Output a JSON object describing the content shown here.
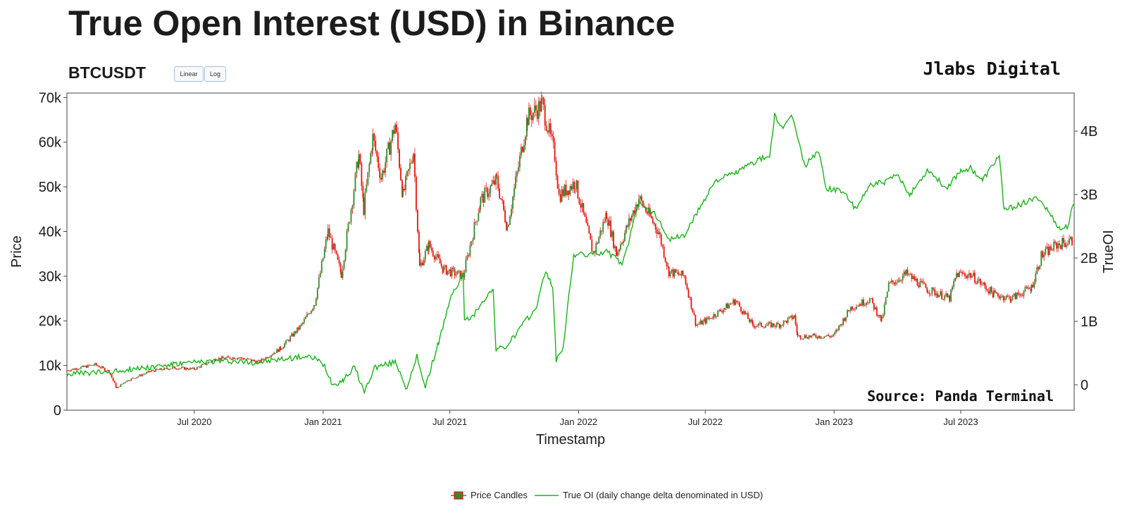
{
  "header": {
    "title": "True Open Interest (USD) in Binance",
    "symbol": "BTCUSDT",
    "brand": "Jlabs Digital",
    "source": "Source: Panda Terminal"
  },
  "controls": {
    "linear_label": "Linear",
    "log_label": "Log",
    "active_scale": "linear"
  },
  "legend": {
    "items": [
      {
        "label": "Price Candles",
        "icon": "candle-swatch-icon"
      },
      {
        "label": "True OI (daily change delta denominated in USD)",
        "icon": "line-swatch-icon"
      }
    ]
  },
  "colors": {
    "candle_up": "#2e8b2e",
    "candle_down": "#e8120c",
    "oi_line": "#18b318",
    "axis": "#444444"
  },
  "chart_data": {
    "type": "line",
    "xlabel": "Timestamp",
    "ylabel_left": "Price",
    "ylabel_right": "TrueOI",
    "x_ticks": [
      "Jul 2020",
      "Jan 2021",
      "Jul 2021",
      "Jan 2022",
      "Jul 2022",
      "Jan 2023",
      "Jul 2023"
    ],
    "x_tick_dates": [
      "2020-07-01",
      "2021-01-01",
      "2021-07-01",
      "2022-01-01",
      "2022-07-01",
      "2023-01-01",
      "2023-07-01"
    ],
    "xlim": [
      "2020-01-01",
      "2023-12-10"
    ],
    "y_left_ticks": [
      "0",
      "10k",
      "20k",
      "30k",
      "40k",
      "50k",
      "60k",
      "70k"
    ],
    "y_left_range": [
      0,
      71000
    ],
    "y_right_ticks": [
      "0",
      "1B",
      "2B",
      "3B",
      "4B"
    ],
    "y_right_range": [
      -0.4,
      4.6
    ],
    "y_right_unit": "B",
    "grid": false,
    "legend_position": "bottom-center",
    "series": [
      {
        "name": "Price Candles",
        "kind": "candlestick",
        "points": [
          [
            "2020-01-01",
            8900
          ],
          [
            "2020-02-10",
            10200
          ],
          [
            "2020-03-01",
            8700
          ],
          [
            "2020-03-12",
            4900
          ],
          [
            "2020-03-25",
            6500
          ],
          [
            "2020-05-01",
            8800
          ],
          [
            "2020-06-01",
            9500
          ],
          [
            "2020-07-01",
            9200
          ],
          [
            "2020-08-01",
            11500
          ],
          [
            "2020-09-01",
            11800
          ],
          [
            "2020-10-01",
            10800
          ],
          [
            "2020-11-01",
            13800
          ],
          [
            "2020-12-01",
            19000
          ],
          [
            "2020-12-20",
            24000
          ],
          [
            "2021-01-08",
            40000
          ],
          [
            "2021-01-27",
            30500
          ],
          [
            "2021-02-21",
            57000
          ],
          [
            "2021-02-28",
            45000
          ],
          [
            "2021-03-13",
            61000
          ],
          [
            "2021-03-25",
            52000
          ],
          [
            "2021-04-14",
            64000
          ],
          [
            "2021-04-25",
            48000
          ],
          [
            "2021-05-10",
            58000
          ],
          [
            "2021-05-19",
            32000
          ],
          [
            "2021-06-01",
            37000
          ],
          [
            "2021-06-22",
            31500
          ],
          [
            "2021-07-20",
            30000
          ],
          [
            "2021-08-14",
            47000
          ],
          [
            "2021-09-06",
            51500
          ],
          [
            "2021-09-21",
            41000
          ],
          [
            "2021-10-20",
            65500
          ],
          [
            "2021-11-10",
            68500
          ],
          [
            "2021-11-28",
            57000
          ],
          [
            "2021-12-04",
            48000
          ],
          [
            "2021-12-27",
            51000
          ],
          [
            "2022-01-22",
            35000
          ],
          [
            "2022-02-10",
            44000
          ],
          [
            "2022-02-24",
            35000
          ],
          [
            "2022-03-28",
            47500
          ],
          [
            "2022-04-25",
            40000
          ],
          [
            "2022-05-10",
            31000
          ],
          [
            "2022-06-01",
            30000
          ],
          [
            "2022-06-18",
            19000
          ],
          [
            "2022-07-01",
            20000
          ],
          [
            "2022-08-13",
            24500
          ],
          [
            "2022-09-07",
            19000
          ],
          [
            "2022-10-15",
            19100
          ],
          [
            "2022-11-05",
            21000
          ],
          [
            "2022-11-10",
            16500
          ],
          [
            "2022-12-31",
            16600
          ],
          [
            "2023-01-25",
            23000
          ],
          [
            "2023-02-21",
            24800
          ],
          [
            "2023-03-10",
            20000
          ],
          [
            "2023-03-20",
            28000
          ],
          [
            "2023-04-14",
            30500
          ],
          [
            "2023-05-15",
            27000
          ],
          [
            "2023-06-15",
            25000
          ],
          [
            "2023-06-25",
            30500
          ],
          [
            "2023-07-15",
            30300
          ],
          [
            "2023-08-17",
            26000
          ],
          [
            "2023-09-11",
            25000
          ],
          [
            "2023-10-10",
            27500
          ],
          [
            "2023-10-24",
            34500
          ],
          [
            "2023-11-15",
            37000
          ],
          [
            "2023-12-09",
            38000
          ]
        ]
      },
      {
        "name": "True OI (daily change delta denominated in USD)",
        "kind": "line",
        "points": [
          [
            "2020-01-01",
            0.17
          ],
          [
            "2020-03-01",
            0.2
          ],
          [
            "2020-04-01",
            0.25
          ],
          [
            "2020-06-01",
            0.32
          ],
          [
            "2020-08-01",
            0.38
          ],
          [
            "2020-10-01",
            0.35
          ],
          [
            "2020-11-01",
            0.4
          ],
          [
            "2020-12-01",
            0.44
          ],
          [
            "2020-12-20",
            0.42
          ],
          [
            "2021-01-03",
            0.3
          ],
          [
            "2021-01-15",
            0.0
          ],
          [
            "2021-01-30",
            0.08
          ],
          [
            "2021-02-15",
            0.28
          ],
          [
            "2021-03-01",
            -0.12
          ],
          [
            "2021-03-15",
            0.27
          ],
          [
            "2021-04-15",
            0.36
          ],
          [
            "2021-05-01",
            -0.08
          ],
          [
            "2021-05-15",
            0.45
          ],
          [
            "2021-05-27",
            -0.03
          ],
          [
            "2021-06-15",
            0.67
          ],
          [
            "2021-06-25",
            1.07
          ],
          [
            "2021-07-05",
            1.46
          ],
          [
            "2021-07-15",
            1.62
          ],
          [
            "2021-07-20",
            1.78
          ],
          [
            "2021-07-22",
            1.0
          ],
          [
            "2021-08-05",
            1.1
          ],
          [
            "2021-08-15",
            1.3
          ],
          [
            "2021-09-01",
            1.5
          ],
          [
            "2021-09-05",
            0.55
          ],
          [
            "2021-09-20",
            0.6
          ],
          [
            "2021-10-10",
            0.9
          ],
          [
            "2021-11-01",
            1.2
          ],
          [
            "2021-11-15",
            1.8
          ],
          [
            "2021-11-25",
            1.55
          ],
          [
            "2021-11-30",
            0.38
          ],
          [
            "2021-12-10",
            0.6
          ],
          [
            "2021-12-25",
            2.05
          ],
          [
            "2022-01-15",
            2.05
          ],
          [
            "2022-02-10",
            2.1
          ],
          [
            "2022-03-05",
            1.9
          ],
          [
            "2022-03-20",
            2.55
          ],
          [
            "2022-03-28",
            2.9
          ],
          [
            "2022-04-20",
            2.7
          ],
          [
            "2022-05-10",
            2.3
          ],
          [
            "2022-06-01",
            2.35
          ],
          [
            "2022-07-01",
            2.95
          ],
          [
            "2022-07-15",
            3.22
          ],
          [
            "2022-08-15",
            3.35
          ],
          [
            "2022-09-15",
            3.55
          ],
          [
            "2022-10-01",
            3.6
          ],
          [
            "2022-10-08",
            4.25
          ],
          [
            "2022-10-20",
            4.0
          ],
          [
            "2022-11-01",
            4.28
          ],
          [
            "2022-11-20",
            3.45
          ],
          [
            "2022-12-10",
            3.7
          ],
          [
            "2022-12-20",
            3.1
          ],
          [
            "2023-01-15",
            3.05
          ],
          [
            "2023-02-01",
            2.75
          ],
          [
            "2023-02-20",
            3.15
          ],
          [
            "2023-03-15",
            3.2
          ],
          [
            "2023-04-01",
            3.3
          ],
          [
            "2023-04-20",
            3.0
          ],
          [
            "2023-05-15",
            3.4
          ],
          [
            "2023-06-10",
            3.1
          ],
          [
            "2023-07-01",
            3.38
          ],
          [
            "2023-07-15",
            3.42
          ],
          [
            "2023-08-01",
            3.22
          ],
          [
            "2023-08-25",
            3.62
          ],
          [
            "2023-09-01",
            2.75
          ],
          [
            "2023-09-25",
            2.85
          ],
          [
            "2023-10-20",
            2.95
          ],
          [
            "2023-11-05",
            2.7
          ],
          [
            "2023-11-20",
            2.45
          ],
          [
            "2023-12-01",
            2.5
          ],
          [
            "2023-12-09",
            2.85
          ]
        ]
      }
    ]
  }
}
